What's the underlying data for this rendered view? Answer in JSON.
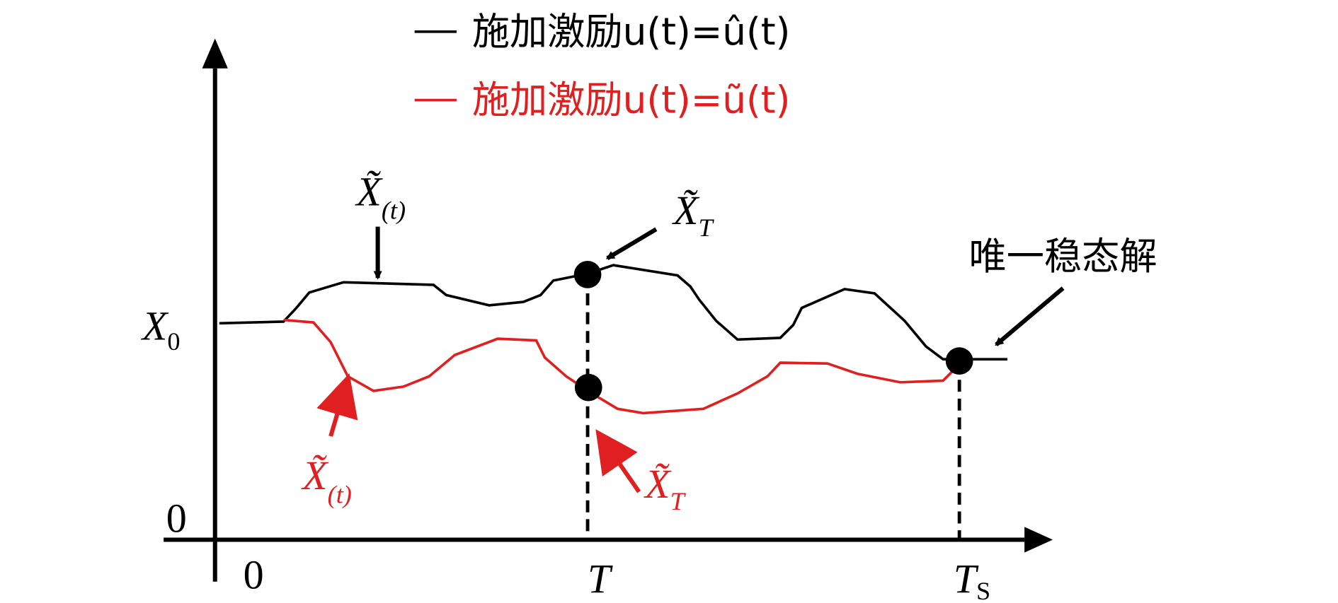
{
  "legend": [
    {
      "label": "施加激励u(t)=û(t)"
    },
    {
      "label": "施加激励u(t)=ũ(t)"
    }
  ],
  "axes": {
    "y_label": {
      "base": "X",
      "sub": "0"
    },
    "y_origin": "0",
    "x_origin": "0",
    "x_mark_1": "T",
    "x_mark_2": {
      "base": "T",
      "sub": "S"
    }
  },
  "annotations": {
    "black_trajectory": {
      "base": "X̃",
      "sub": "(t)"
    },
    "black_point": {
      "base": "X̃",
      "sub": "T"
    },
    "steady_state": "唯一稳态解",
    "red_trajectory": {
      "base": "X̃",
      "sub": "(t)"
    },
    "red_point": {
      "base": "X̃",
      "sub": "T"
    }
  }
}
